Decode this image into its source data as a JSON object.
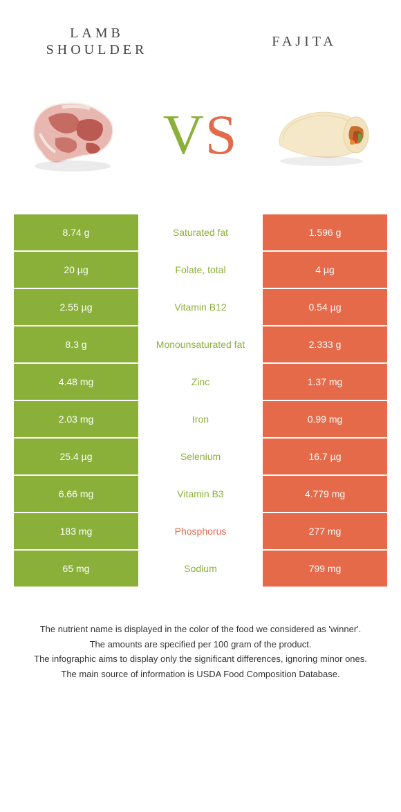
{
  "colors": {
    "left": "#8ab03a",
    "right": "#e46a4a",
    "text": "#333333",
    "background": "#ffffff"
  },
  "header": {
    "left_title": "LAMB SHOULDER",
    "right_title": "FAJITA",
    "vs_v": "V",
    "vs_s": "S"
  },
  "rows": [
    {
      "left": "8.74 g",
      "label": "Saturated fat",
      "right": "1.596 g",
      "winner": "left"
    },
    {
      "left": "20 µg",
      "label": "Folate, total",
      "right": "4 µg",
      "winner": "left"
    },
    {
      "left": "2.55 µg",
      "label": "Vitamin B12",
      "right": "0.54 µg",
      "winner": "left"
    },
    {
      "left": "8.3 g",
      "label": "Monounsaturated fat",
      "right": "2.333 g",
      "winner": "left"
    },
    {
      "left": "4.48 mg",
      "label": "Zinc",
      "right": "1.37 mg",
      "winner": "left"
    },
    {
      "left": "2.03 mg",
      "label": "Iron",
      "right": "0.99 mg",
      "winner": "left"
    },
    {
      "left": "25.4 µg",
      "label": "Selenium",
      "right": "16.7 µg",
      "winner": "left"
    },
    {
      "left": "6.66 mg",
      "label": "Vitamin B3",
      "right": "4.779 mg",
      "winner": "left"
    },
    {
      "left": "183 mg",
      "label": "Phosphorus",
      "right": "277 mg",
      "winner": "right"
    },
    {
      "left": "65 mg",
      "label": "Sodium",
      "right": "799 mg",
      "winner": "left"
    }
  ],
  "footer": {
    "line1": "The nutrient name is displayed in the color of the food we considered as 'winner'.",
    "line2": "The amounts are specified per 100 gram of the product.",
    "line3": "The infographic aims to display only the significant differences, ignoring minor ones.",
    "line4": "The main source of information is USDA Food Composition Database."
  }
}
